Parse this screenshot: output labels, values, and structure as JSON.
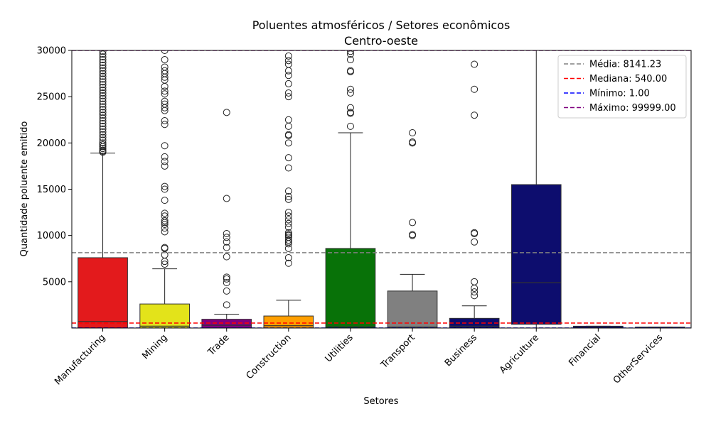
{
  "chart_data": {
    "type": "box",
    "title": "Poluentes atmosféricos / Setores econômicos",
    "subtitle": "Centro-oeste",
    "xlabel": "Setores",
    "ylabel": "Quantidade poluente emitido",
    "ylim": [
      0,
      30000
    ],
    "yticks": [
      5000,
      10000,
      15000,
      20000,
      25000,
      30000
    ],
    "grid": false,
    "legend_position": "top-right",
    "categories": [
      "Manufacturing",
      "Mining",
      "Trade",
      "Construction",
      "Utilities",
      "Transport",
      "Business",
      "Agriculture",
      "Financial",
      "OtherServices"
    ],
    "boxes": [
      {
        "category": "Manufacturing",
        "color": "#e31a1c",
        "q1": 0,
        "median": 700,
        "q3": 7600,
        "whisker_low": 0,
        "whisker_high": 18900,
        "outliers": [
          19000,
          19100,
          19200,
          19400,
          19600,
          19800,
          20000,
          20300,
          20600,
          20900,
          21200,
          21500,
          21800,
          22100,
          22400,
          22700,
          23000,
          23300,
          23600,
          23900,
          24200,
          24500,
          24800,
          25100,
          25400,
          25700,
          26000,
          26300,
          26600,
          26900,
          27200,
          27500,
          27800,
          28100,
          28400,
          28700,
          29000,
          29300,
          29600,
          29900
        ]
      },
      {
        "category": "Mining",
        "color": "#e3e31a",
        "q1": 0,
        "median": 200,
        "q3": 2600,
        "whisker_low": 0,
        "whisker_high": 6400,
        "outliers": [
          6900,
          7200,
          7900,
          8600,
          8700,
          10400,
          10800,
          11200,
          11400,
          11600,
          12100,
          12400,
          13800,
          15000,
          15300,
          17500,
          18000,
          18500,
          19700,
          22000,
          22400,
          23500,
          23800,
          24200,
          24500,
          25300,
          25600,
          26100,
          26800,
          27100,
          27500,
          27800,
          28200,
          29000,
          30000
        ]
      },
      {
        "category": "Trade",
        "color": "#800080",
        "q1": 0,
        "median": 300,
        "q3": 950,
        "whisker_low": 0,
        "whisker_high": 1500,
        "outliers": [
          2500,
          4000,
          4900,
          5300,
          5500,
          7700,
          8700,
          9300,
          9800,
          10200,
          14000,
          23300
        ]
      },
      {
        "category": "Construction",
        "color": "#ff9f00",
        "q1": 0,
        "median": 250,
        "q3": 1300,
        "whisker_low": 0,
        "whisker_high": 3000,
        "outliers": [
          7000,
          7600,
          8600,
          9100,
          9300,
          9500,
          9800,
          10000,
          10100,
          10300,
          10900,
          11300,
          11700,
          12100,
          12500,
          13900,
          14200,
          14800,
          17300,
          18400,
          20000,
          20800,
          20900,
          21800,
          22500,
          25000,
          25400,
          26400,
          27300,
          27800,
          28500,
          28900,
          29400
        ]
      },
      {
        "category": "Utilities",
        "color": "#087208",
        "q1": 0,
        "median": 150,
        "q3": 8600,
        "whisker_low": 0,
        "whisker_high": 21100,
        "outliers": [
          21800,
          23200,
          23300,
          23800,
          25400,
          25800,
          27700,
          27800,
          29000,
          29600,
          29900
        ]
      },
      {
        "category": "Transport",
        "color": "#808080",
        "q1": 0,
        "median": 100,
        "q3": 4000,
        "whisker_low": 0,
        "whisker_high": 5800,
        "outliers": [
          10000,
          10100,
          11400,
          20000,
          20100,
          21100
        ]
      },
      {
        "category": "Business",
        "color": "#0d0d6e",
        "q1": 0,
        "median": 200,
        "q3": 1050,
        "whisker_low": 0,
        "whisker_high": 2400,
        "outliers": [
          3500,
          3900,
          4300,
          5000,
          9300,
          10200,
          10300,
          23000,
          25800,
          28500
        ]
      },
      {
        "category": "Agriculture",
        "color": "#0d0d6e",
        "q1": 400,
        "median": 4900,
        "q3": 15500,
        "whisker_low": 0,
        "whisker_high": 30000,
        "outliers": []
      },
      {
        "category": "Financial",
        "color": "#0d0d6e",
        "q1": 0,
        "median": 50,
        "q3": 200,
        "whisker_low": 0,
        "whisker_high": 200,
        "outliers": []
      },
      {
        "category": "OtherServices",
        "color": "#0d0d6e",
        "q1": 0,
        "median": 30,
        "q3": 100,
        "whisker_low": 0,
        "whisker_high": 100,
        "outliers": []
      }
    ],
    "reference_lines": [
      {
        "label": "Média: 8141.23",
        "value": 8141.23,
        "color": "#808080"
      },
      {
        "label": "Mediana: 540.00",
        "value": 540.0,
        "color": "#ff0000"
      },
      {
        "label": "Mínimo: 1.00",
        "value": 1.0,
        "color": "#0000ff"
      },
      {
        "label": "Máximo: 99999.00",
        "value": 99999.0,
        "color": "#800080"
      }
    ]
  }
}
